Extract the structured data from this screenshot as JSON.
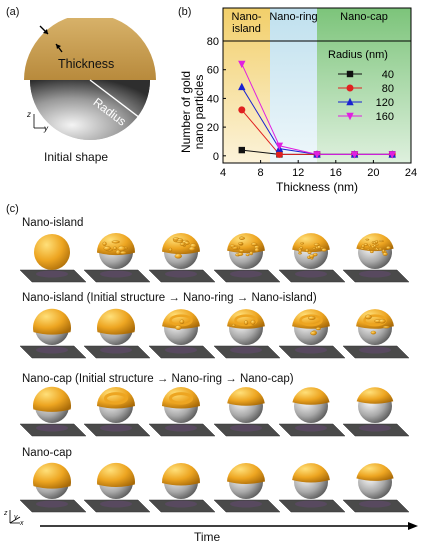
{
  "panels": {
    "a": "(a)",
    "b": "(b)",
    "c": "(c)"
  },
  "panel_a": {
    "thickness_label": "Thickness",
    "radius_label": "Radius",
    "axis_z": "z",
    "axis_y": "y",
    "caption": "Initial shape",
    "colors": {
      "cap": "#c9a258",
      "sphere_light": "#f2f2f2",
      "sphere_dark": "#3a3a3a"
    }
  },
  "chart_data": {
    "type": "line",
    "xlabel": "Thickness (nm)",
    "ylabel": "Number of gold nano particles",
    "xlim": [
      4,
      24
    ],
    "ylim": [
      -5,
      80
    ],
    "xticks": [
      4,
      8,
      12,
      16,
      20,
      24
    ],
    "yticks": [
      0,
      20,
      40,
      60,
      80
    ],
    "regions": [
      {
        "label": "Nano-\nisland",
        "from": 4,
        "to": 9,
        "color": "#f2cf6a"
      },
      {
        "label": "Nano-ring",
        "from": 9,
        "to": 14,
        "color": "#bfe0ee"
      },
      {
        "label": "Nano-cap",
        "from": 14,
        "to": 24,
        "color": "#7cc47a"
      }
    ],
    "legend_title": "Radius (nm)",
    "legend_position": "right",
    "x": [
      6,
      10,
      14,
      18,
      22
    ],
    "series": [
      {
        "name": "40",
        "values": [
          4,
          1,
          1,
          1,
          1
        ],
        "color": "#111111",
        "marker": "square"
      },
      {
        "name": "80",
        "values": [
          32,
          1,
          1,
          1,
          1
        ],
        "color": "#e02020",
        "marker": "circle"
      },
      {
        "name": "120",
        "values": [
          48,
          5,
          1,
          1,
          1
        ],
        "color": "#1a22d0",
        "marker": "triangle-up"
      },
      {
        "name": "160",
        "values": [
          64,
          7,
          1,
          1,
          1
        ],
        "color": "#e020e0",
        "marker": "triangle-down"
      }
    ]
  },
  "panel_c": {
    "rows": [
      {
        "title": "Nano-island",
        "kind": "island"
      },
      {
        "title": "Nano-island (Initial structure → Nano-ring → Nano-island)",
        "kind": "island-ring"
      },
      {
        "title": "Nano-cap (Initial structure → Nano-ring → Nano-cap)",
        "kind": "cap-ring"
      },
      {
        "title": "Nano-cap",
        "kind": "cap"
      }
    ],
    "time_label": "Time",
    "axis_z": "z",
    "axis_y": "y",
    "axis_x": "x",
    "colors": {
      "gold": "#e8a21c",
      "gold_light": "#ffd35a",
      "sphere": "#b8b8b8",
      "plate": "#4a4a4a"
    }
  }
}
